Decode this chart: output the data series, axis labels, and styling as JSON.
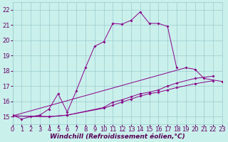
{
  "xlabel": "Windchill (Refroidissement éolien,°C)",
  "background_color": "#caf0ec",
  "line_color": "#880088",
  "grid_color": "#99cccc",
  "xlim": [
    0,
    23
  ],
  "ylim": [
    14.5,
    22.5
  ],
  "yticks": [
    15,
    16,
    17,
    18,
    19,
    20,
    21,
    22
  ],
  "xticks": [
    0,
    1,
    2,
    3,
    4,
    5,
    6,
    7,
    8,
    9,
    10,
    11,
    12,
    13,
    14,
    15,
    16,
    17,
    18,
    19,
    20,
    21,
    22,
    23
  ],
  "line1_x": [
    0,
    1,
    2,
    3,
    4,
    5,
    6,
    7,
    8,
    9,
    10,
    11,
    12,
    13,
    14,
    15,
    16,
    17,
    18
  ],
  "line1_y": [
    15.1,
    14.85,
    15.0,
    15.1,
    15.5,
    16.5,
    15.3,
    16.7,
    18.2,
    19.6,
    19.9,
    21.1,
    21.05,
    21.3,
    21.85,
    21.1,
    21.1,
    20.9,
    18.2
  ],
  "line2_x": [
    0,
    4,
    6,
    10,
    11,
    12,
    13,
    14,
    15,
    16,
    17,
    18,
    20,
    22
  ],
  "line2_y": [
    15.05,
    15.0,
    15.1,
    15.6,
    15.95,
    16.1,
    16.3,
    16.5,
    16.6,
    16.75,
    17.0,
    17.2,
    17.5,
    17.65
  ],
  "line3_x": [
    0,
    4,
    6,
    10,
    11,
    12,
    13,
    14,
    15,
    16,
    17,
    18,
    20,
    22
  ],
  "line3_y": [
    15.05,
    15.0,
    15.1,
    15.55,
    15.75,
    15.95,
    16.15,
    16.35,
    16.5,
    16.6,
    16.75,
    16.9,
    17.15,
    17.35
  ],
  "line4_x": [
    0,
    19,
    20,
    21,
    23
  ],
  "line4_y": [
    15.05,
    18.2,
    18.1,
    17.5,
    17.3
  ],
  "fontsize_xlabel": 6.5,
  "fontsize_tick": 6.0
}
